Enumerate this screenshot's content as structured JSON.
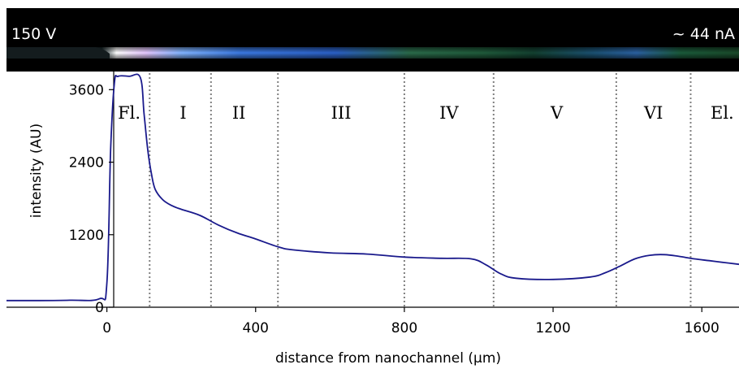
{
  "image_strip": {
    "voltage_label": "150 V",
    "current_label": "~ 44 nA"
  },
  "chart_data": {
    "type": "line",
    "title": "",
    "xlabel": "distance from nanochannel (µm)",
    "ylabel": "intensity (AU)",
    "xlim": [
      -270,
      1700
    ],
    "ylim": [
      0,
      3900
    ],
    "xticks": [
      0,
      400,
      800,
      1200,
      1600
    ],
    "yticks": [
      0,
      1200,
      2400,
      3600
    ],
    "grid": false,
    "legend": "none",
    "series_color": "#1a1a8c",
    "boundary_color": "#808080",
    "region_boundaries": [
      115,
      280,
      460,
      800,
      1040,
      1370,
      1570
    ],
    "regions": [
      {
        "label": "Fl.",
        "x": 60
      },
      {
        "label": "I",
        "x": 205
      },
      {
        "label": "II",
        "x": 355
      },
      {
        "label": "III",
        "x": 630
      },
      {
        "label": "IV",
        "x": 920
      },
      {
        "label": "V",
        "x": 1210
      },
      {
        "label": "VI",
        "x": 1470
      },
      {
        "label": "El.",
        "x": 1655
      }
    ],
    "series": [
      {
        "x": [
          -270,
          -200,
          -100,
          -20,
          0,
          10,
          20,
          30,
          60,
          90,
          100,
          110,
          120,
          130,
          150,
          175,
          200,
          250,
          300,
          350,
          400,
          460,
          500,
          600,
          700,
          800,
          900,
          980,
          1020,
          1060,
          1100,
          1200,
          1300,
          1340,
          1380,
          1420,
          1460,
          1500,
          1540,
          1580,
          1620,
          1660,
          1700
        ],
        "y": [
          110,
          110,
          115,
          140,
          400,
          2600,
          3700,
          3820,
          3820,
          3800,
          3200,
          2600,
          2200,
          1950,
          1780,
          1680,
          1620,
          1520,
          1360,
          1230,
          1130,
          1000,
          950,
          900,
          880,
          830,
          810,
          800,
          700,
          550,
          480,
          460,
          500,
          570,
          680,
          800,
          860,
          870,
          840,
          800,
          770,
          740,
          710
        ]
      }
    ]
  }
}
